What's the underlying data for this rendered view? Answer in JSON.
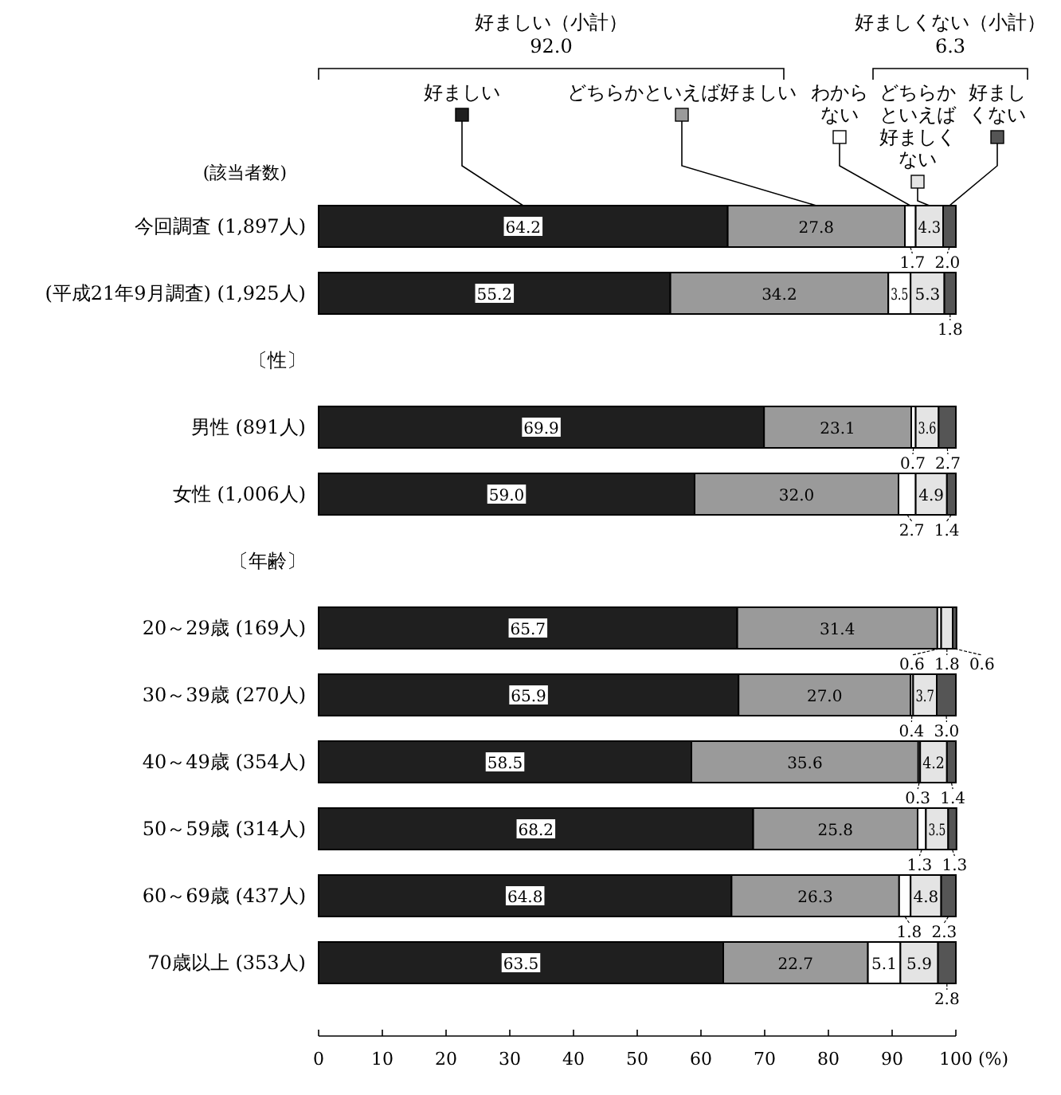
{
  "chart_data": {
    "type": "bar",
    "orientation": "horizontal",
    "stacked": true,
    "legend": "top",
    "categories": [
      "今回調査 (1,897人)",
      "(平成21年9月調査) (1,925人)",
      "〔性〕",
      "男性 (891人)",
      "女性 (1,006人)",
      "〔年齢〕",
      "20～29歳 (169人)",
      "30～39歳 (270人)",
      "40～49歳 (354人)",
      "50～59歳 (314人)",
      "60～69歳 (437人)",
      "70歳以上 (353人)"
    ],
    "series": [
      {
        "name": "好ましい",
        "color": "#1f1f1f",
        "values": [
          64.2,
          55.2,
          null,
          69.9,
          59.0,
          null,
          65.7,
          65.9,
          58.5,
          68.2,
          64.8,
          63.5
        ],
        "value_labels": [
          "64.2",
          "55.2",
          null,
          "69.9",
          "59.0",
          null,
          "65.7",
          "65.9",
          "58.5",
          "68.2",
          "64.8",
          "63.5"
        ]
      },
      {
        "name": "どちらかといえば好ましい",
        "color": "#9a9a9a",
        "values": [
          27.8,
          34.2,
          null,
          23.1,
          32.0,
          null,
          31.4,
          27.0,
          35.6,
          25.8,
          26.3,
          22.7
        ],
        "value_labels": [
          "27.8",
          "34.2",
          null,
          "23.1",
          "32.0",
          null,
          "31.4",
          "27.0",
          "35.6",
          "25.8",
          "26.3",
          "22.7"
        ]
      },
      {
        "name": "わからない",
        "color": "#ffffff",
        "values": [
          1.7,
          3.5,
          null,
          0.7,
          2.7,
          null,
          0.6,
          0.4,
          0.3,
          1.3,
          1.8,
          5.1
        ],
        "value_labels": [
          "1.7",
          "3.5",
          null,
          "0.7",
          "2.7",
          null,
          "0.6",
          "0.4",
          "0.3",
          "1.3",
          "1.8",
          "5.1"
        ]
      },
      {
        "name": "どちらかといえば好ましくない",
        "color": "#e4e4e4",
        "values": [
          4.3,
          5.3,
          null,
          3.6,
          4.9,
          null,
          1.8,
          3.7,
          4.2,
          3.5,
          4.8,
          5.9
        ],
        "value_labels": [
          "4.3",
          "5.3",
          null,
          "3.6",
          "4.9",
          null,
          "1.8",
          "3.7",
          "4.2",
          "3.5",
          "4.8",
          "5.9"
        ]
      },
      {
        "name": "好ましくない",
        "color": "#555555",
        "values": [
          2.0,
          1.8,
          null,
          2.7,
          1.4,
          null,
          0.6,
          3.0,
          1.4,
          1.3,
          2.3,
          2.8
        ],
        "value_labels": [
          "2.0",
          "1.8",
          null,
          "2.7",
          "1.4",
          null,
          "0.6",
          "3.0",
          "1.4",
          "1.3",
          "2.3",
          "2.8"
        ]
      }
    ],
    "xlim": [
      0,
      100
    ],
    "xticks": [
      0,
      10,
      20,
      30,
      40,
      50,
      60,
      70,
      80,
      90,
      100
    ],
    "xlabel": "(%)",
    "annotations": [
      "好ましい（小計） 92.0",
      "好ましくない（小計） 6.3",
      "(該当者数)"
    ]
  }
}
